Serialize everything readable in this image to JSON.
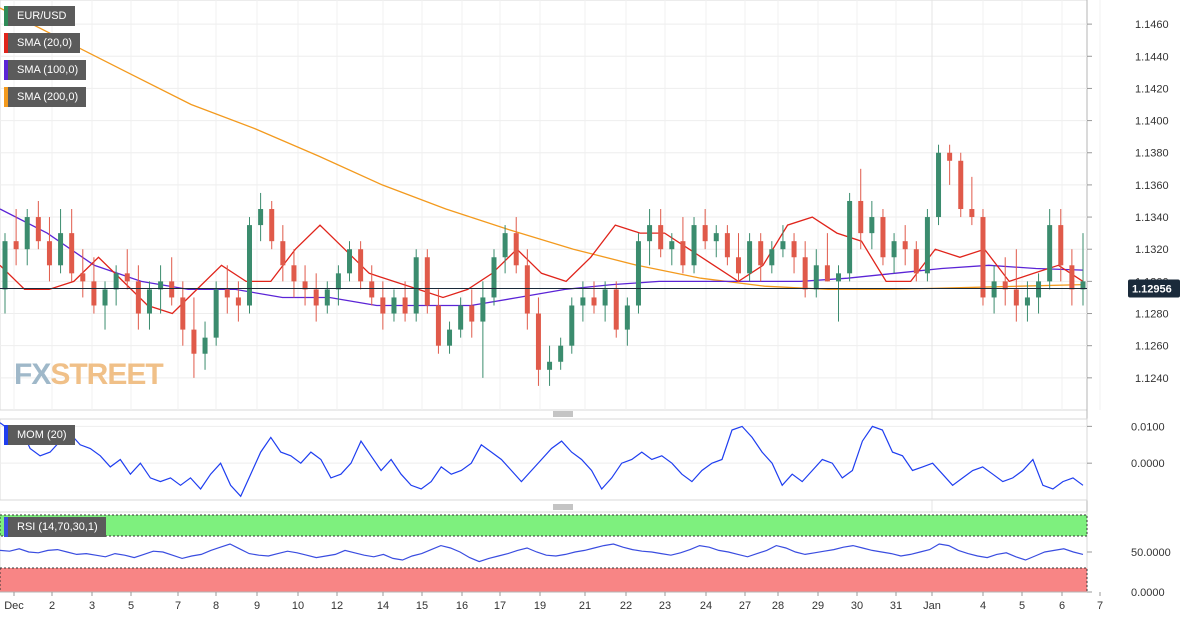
{
  "symbol": "EUR/USD",
  "current_price_label": "1.12956",
  "watermark": {
    "part1": "FX",
    "part2": "STREET"
  },
  "legends": {
    "price": {
      "label": "EUR/USD",
      "color": "#2e8b57"
    },
    "sma20": {
      "label": "SMA (20,0)",
      "color": "#e0241b"
    },
    "sma100": {
      "label": "SMA (100,0)",
      "color": "#5b24d6"
    },
    "sma200": {
      "label": "SMA (200,0)",
      "color": "#f39a1e"
    },
    "mom": {
      "label": "MOM (20)",
      "color": "#1f3ef0"
    },
    "rsi": {
      "label": "RSI (14,70,30,1)",
      "color": "#3a4de0"
    }
  },
  "chart_data": [
    {
      "type": "candlestick",
      "title": "EUR/USD",
      "ylim": [
        1.122,
        1.1475
      ],
      "y_ticks": [
        "1.1240",
        "1.1260",
        "1.1280",
        "1.1300",
        "1.1320",
        "1.1340",
        "1.1360",
        "1.1380",
        "1.1400",
        "1.1420",
        "1.1440",
        "1.1460"
      ],
      "x_tick_labels": [
        "Dec",
        "2",
        "3",
        "5",
        "7",
        "8",
        "9",
        "10",
        "12",
        "14",
        "15",
        "16",
        "17",
        "19",
        "21",
        "22",
        "23",
        "24",
        "27",
        "28",
        "29",
        "30",
        "31",
        "Jan",
        "4",
        "5",
        "6",
        "7"
      ],
      "current_price": 1.12956,
      "up_color": "#3b8c6e",
      "down_color": "#e05a4a",
      "ohlc": [
        [
          1.1295,
          1.133,
          1.128,
          1.1325
        ],
        [
          1.1325,
          1.1345,
          1.131,
          1.132
        ],
        [
          1.132,
          1.1345,
          1.131,
          1.134
        ],
        [
          1.134,
          1.135,
          1.132,
          1.1325
        ],
        [
          1.1325,
          1.134,
          1.13,
          1.131
        ],
        [
          1.131,
          1.1345,
          1.1305,
          1.133
        ],
        [
          1.133,
          1.1345,
          1.13,
          1.1305
        ],
        [
          1.1305,
          1.132,
          1.129,
          1.13
        ],
        [
          1.13,
          1.1315,
          1.128,
          1.1285
        ],
        [
          1.1285,
          1.13,
          1.127,
          1.1295
        ],
        [
          1.1295,
          1.131,
          1.1285,
          1.1305
        ],
        [
          1.1305,
          1.132,
          1.1295,
          1.13
        ],
        [
          1.13,
          1.131,
          1.127,
          1.128
        ],
        [
          1.128,
          1.13,
          1.127,
          1.1295
        ],
        [
          1.1295,
          1.131,
          1.128,
          1.13
        ],
        [
          1.13,
          1.1315,
          1.1285,
          1.129
        ],
        [
          1.129,
          1.13,
          1.126,
          1.127
        ],
        [
          1.127,
          1.129,
          1.124,
          1.1255
        ],
        [
          1.1255,
          1.1275,
          1.1245,
          1.1265
        ],
        [
          1.1265,
          1.13,
          1.126,
          1.1295
        ],
        [
          1.1295,
          1.131,
          1.128,
          1.129
        ],
        [
          1.129,
          1.13,
          1.1275,
          1.1285
        ],
        [
          1.1285,
          1.134,
          1.128,
          1.1335
        ],
        [
          1.1335,
          1.1355,
          1.1325,
          1.1345
        ],
        [
          1.1345,
          1.135,
          1.132,
          1.1325
        ],
        [
          1.1325,
          1.1335,
          1.13,
          1.131
        ],
        [
          1.131,
          1.132,
          1.129,
          1.13
        ],
        [
          1.13,
          1.131,
          1.1285,
          1.1295
        ],
        [
          1.1295,
          1.1305,
          1.1275,
          1.1285
        ],
        [
          1.1285,
          1.13,
          1.128,
          1.1295
        ],
        [
          1.1295,
          1.131,
          1.1285,
          1.1305
        ],
        [
          1.1305,
          1.1325,
          1.13,
          1.132
        ],
        [
          1.132,
          1.1325,
          1.1295,
          1.13
        ],
        [
          1.13,
          1.131,
          1.1285,
          1.129
        ],
        [
          1.129,
          1.13,
          1.127,
          1.128
        ],
        [
          1.128,
          1.1295,
          1.1275,
          1.129
        ],
        [
          1.129,
          1.13,
          1.1275,
          1.128
        ],
        [
          1.128,
          1.132,
          1.1275,
          1.1315
        ],
        [
          1.1315,
          1.132,
          1.128,
          1.1285
        ],
        [
          1.1285,
          1.1295,
          1.1255,
          1.126
        ],
        [
          1.126,
          1.1275,
          1.1255,
          1.127
        ],
        [
          1.127,
          1.129,
          1.1265,
          1.1285
        ],
        [
          1.1285,
          1.1295,
          1.1265,
          1.1275
        ],
        [
          1.1275,
          1.13,
          1.124,
          1.129
        ],
        [
          1.129,
          1.132,
          1.1285,
          1.1315
        ],
        [
          1.1315,
          1.1335,
          1.1305,
          1.133
        ],
        [
          1.133,
          1.134,
          1.1305,
          1.131
        ],
        [
          1.131,
          1.132,
          1.127,
          1.128
        ],
        [
          1.128,
          1.129,
          1.1235,
          1.1245
        ],
        [
          1.1245,
          1.126,
          1.1235,
          1.125
        ],
        [
          1.125,
          1.1265,
          1.1245,
          1.126
        ],
        [
          1.126,
          1.129,
          1.1255,
          1.1285
        ],
        [
          1.1285,
          1.13,
          1.1275,
          1.129
        ],
        [
          1.129,
          1.13,
          1.128,
          1.1285
        ],
        [
          1.1285,
          1.13,
          1.1275,
          1.1295
        ],
        [
          1.1295,
          1.13,
          1.1265,
          1.127
        ],
        [
          1.127,
          1.129,
          1.126,
          1.1285
        ],
        [
          1.1285,
          1.133,
          1.128,
          1.1325
        ],
        [
          1.1325,
          1.1345,
          1.131,
          1.1335
        ],
        [
          1.1335,
          1.1345,
          1.1315,
          1.132
        ],
        [
          1.132,
          1.133,
          1.131,
          1.1325
        ],
        [
          1.1325,
          1.134,
          1.1305,
          1.131
        ],
        [
          1.131,
          1.134,
          1.1305,
          1.1335
        ],
        [
          1.1335,
          1.1345,
          1.132,
          1.1325
        ],
        [
          1.1325,
          1.1335,
          1.1315,
          1.133
        ],
        [
          1.133,
          1.1335,
          1.131,
          1.1315
        ],
        [
          1.1315,
          1.133,
          1.13,
          1.1305
        ],
        [
          1.1305,
          1.133,
          1.13,
          1.1325
        ],
        [
          1.1325,
          1.133,
          1.13,
          1.131
        ],
        [
          1.131,
          1.1325,
          1.1305,
          1.132
        ],
        [
          1.132,
          1.1335,
          1.1315,
          1.1325
        ],
        [
          1.1325,
          1.133,
          1.1305,
          1.1315
        ],
        [
          1.1315,
          1.1325,
          1.129,
          1.1295
        ],
        [
          1.1295,
          1.132,
          1.129,
          1.131
        ],
        [
          1.131,
          1.133,
          1.13,
          1.13
        ],
        [
          1.13,
          1.131,
          1.1275,
          1.1305
        ],
        [
          1.1305,
          1.1355,
          1.13,
          1.135
        ],
        [
          1.135,
          1.137,
          1.132,
          1.133
        ],
        [
          1.133,
          1.135,
          1.132,
          1.134
        ],
        [
          1.134,
          1.1345,
          1.131,
          1.1315
        ],
        [
          1.1315,
          1.133,
          1.1305,
          1.1325
        ],
        [
          1.1325,
          1.1335,
          1.131,
          1.132
        ],
        [
          1.132,
          1.1325,
          1.13,
          1.1305
        ],
        [
          1.1305,
          1.1345,
          1.13,
          1.134
        ],
        [
          1.134,
          1.1385,
          1.1335,
          1.138
        ],
        [
          1.138,
          1.1385,
          1.136,
          1.1375
        ],
        [
          1.1375,
          1.138,
          1.134,
          1.1345
        ],
        [
          1.1345,
          1.1365,
          1.1335,
          1.134
        ],
        [
          1.134,
          1.1345,
          1.1285,
          1.129
        ],
        [
          1.129,
          1.131,
          1.128,
          1.13
        ],
        [
          1.13,
          1.1315,
          1.1285,
          1.1295
        ],
        [
          1.1295,
          1.132,
          1.1275,
          1.1285
        ],
        [
          1.1285,
          1.13,
          1.1275,
          1.129
        ],
        [
          1.129,
          1.1305,
          1.128,
          1.13
        ],
        [
          1.13,
          1.1345,
          1.1295,
          1.1335
        ],
        [
          1.1335,
          1.1345,
          1.13,
          1.131
        ],
        [
          1.131,
          1.132,
          1.1285,
          1.1295
        ],
        [
          1.1295,
          1.133,
          1.1285,
          1.13
        ]
      ],
      "sma20": [
        1.131,
        1.1295,
        1.1295,
        1.13,
        1.1315,
        1.13,
        1.1285,
        1.128,
        1.1295,
        1.131,
        1.13,
        1.13,
        1.132,
        1.1335,
        1.132,
        1.1305,
        1.13,
        1.1295,
        1.129,
        1.1295,
        1.1305,
        1.132,
        1.1305,
        1.13,
        1.1315,
        1.1335,
        1.133,
        1.133,
        1.132,
        1.131,
        1.13,
        1.131,
        1.1335,
        1.134,
        1.133,
        1.1325,
        1.13,
        1.13,
        1.132,
        1.1315,
        1.132,
        1.13,
        1.1305,
        1.131,
        1.13
      ],
      "sma100": [
        1.1345,
        1.133,
        1.131,
        1.13,
        1.1295,
        1.1295,
        1.129,
        1.129,
        1.1285,
        1.1285,
        1.1285,
        1.129,
        1.1295,
        1.1298,
        1.13,
        1.13,
        1.13,
        1.13,
        1.1302,
        1.1305,
        1.1308,
        1.131,
        1.1308,
        1.1307
      ],
      "sma200": [
        1.147,
        1.145,
        1.143,
        1.141,
        1.1395,
        1.1378,
        1.136,
        1.1345,
        1.1332,
        1.132,
        1.131,
        1.1302,
        1.1297,
        1.1295,
        1.1295,
        1.1296,
        1.1297,
        1.1298
      ],
      "series": [
        {
          "name": "SMA (20,0)"
        },
        {
          "name": "SMA (100,0)"
        },
        {
          "name": "SMA (200,0)"
        }
      ]
    },
    {
      "type": "line",
      "title": "MOM (20)",
      "ylim": [
        -0.01,
        0.012
      ],
      "y_ticks": [
        "0.0100",
        "0.0000"
      ],
      "values": [
        0.011,
        0.009,
        0.01,
        0.004,
        0.002,
        0.003,
        0.006,
        0.008,
        0.005,
        0.004,
        0.002,
        -0.001,
        0.001,
        -0.003,
        0.0,
        -0.004,
        -0.005,
        -0.004,
        -0.006,
        -0.004,
        -0.007,
        -0.003,
        0.0,
        -0.006,
        -0.009,
        -0.003,
        0.003,
        0.007,
        0.003,
        0.002,
        0.0,
        0.003,
        0.001,
        -0.004,
        -0.003,
        0.0,
        0.006,
        0.002,
        -0.002,
        0.001,
        -0.003,
        -0.006,
        -0.007,
        -0.005,
        -0.001,
        -0.003,
        -0.002,
        0.0,
        0.005,
        0.003,
        0.001,
        -0.002,
        -0.005,
        -0.002,
        0.001,
        0.004,
        0.006,
        0.003,
        0.001,
        -0.002,
        -0.007,
        -0.004,
        0.0,
        0.001,
        0.003,
        0.001,
        0.002,
        0.0,
        -0.003,
        -0.005,
        -0.002,
        0.0,
        0.001,
        0.009,
        0.01,
        0.007,
        0.003,
        0.0,
        -0.006,
        -0.003,
        -0.005,
        -0.002,
        0.001,
        0.0,
        -0.004,
        -0.002,
        0.006,
        0.01,
        0.009,
        0.003,
        0.002,
        -0.002,
        -0.001,
        0.0,
        -0.003,
        -0.006,
        -0.004,
        -0.002,
        -0.001,
        -0.003,
        -0.005,
        -0.004,
        -0.002,
        0.001,
        -0.006,
        -0.007,
        -0.005,
        -0.004,
        -0.006
      ]
    },
    {
      "type": "line",
      "title": "RSI (14,70,30,1)",
      "ylim": [
        0,
        100
      ],
      "y_ticks": [
        "50.0000",
        "0.0000"
      ],
      "overbought": 70,
      "oversold": 30,
      "values": [
        52,
        51,
        54,
        50,
        49,
        52,
        53,
        50,
        47,
        48,
        46,
        44,
        48,
        46,
        43,
        47,
        51,
        50,
        46,
        42,
        45,
        47,
        52,
        56,
        60,
        54,
        48,
        46,
        45,
        48,
        51,
        49,
        46,
        43,
        45,
        47,
        52,
        49,
        46,
        44,
        47,
        42,
        40,
        45,
        48,
        53,
        58,
        55,
        50,
        43,
        38,
        42,
        45,
        48,
        52,
        55,
        50,
        46,
        45,
        47,
        50,
        52,
        55,
        58,
        60,
        56,
        53,
        51,
        50,
        48,
        46,
        49,
        53,
        58,
        56,
        52,
        50,
        47,
        44,
        48,
        52,
        58,
        55,
        50,
        47,
        49,
        51,
        53,
        56,
        58,
        55,
        52,
        50,
        48,
        45,
        47,
        50,
        53,
        60,
        58,
        52,
        48,
        45,
        43,
        47,
        49,
        44,
        40,
        45,
        50,
        52,
        54,
        50,
        47
      ]
    }
  ]
}
